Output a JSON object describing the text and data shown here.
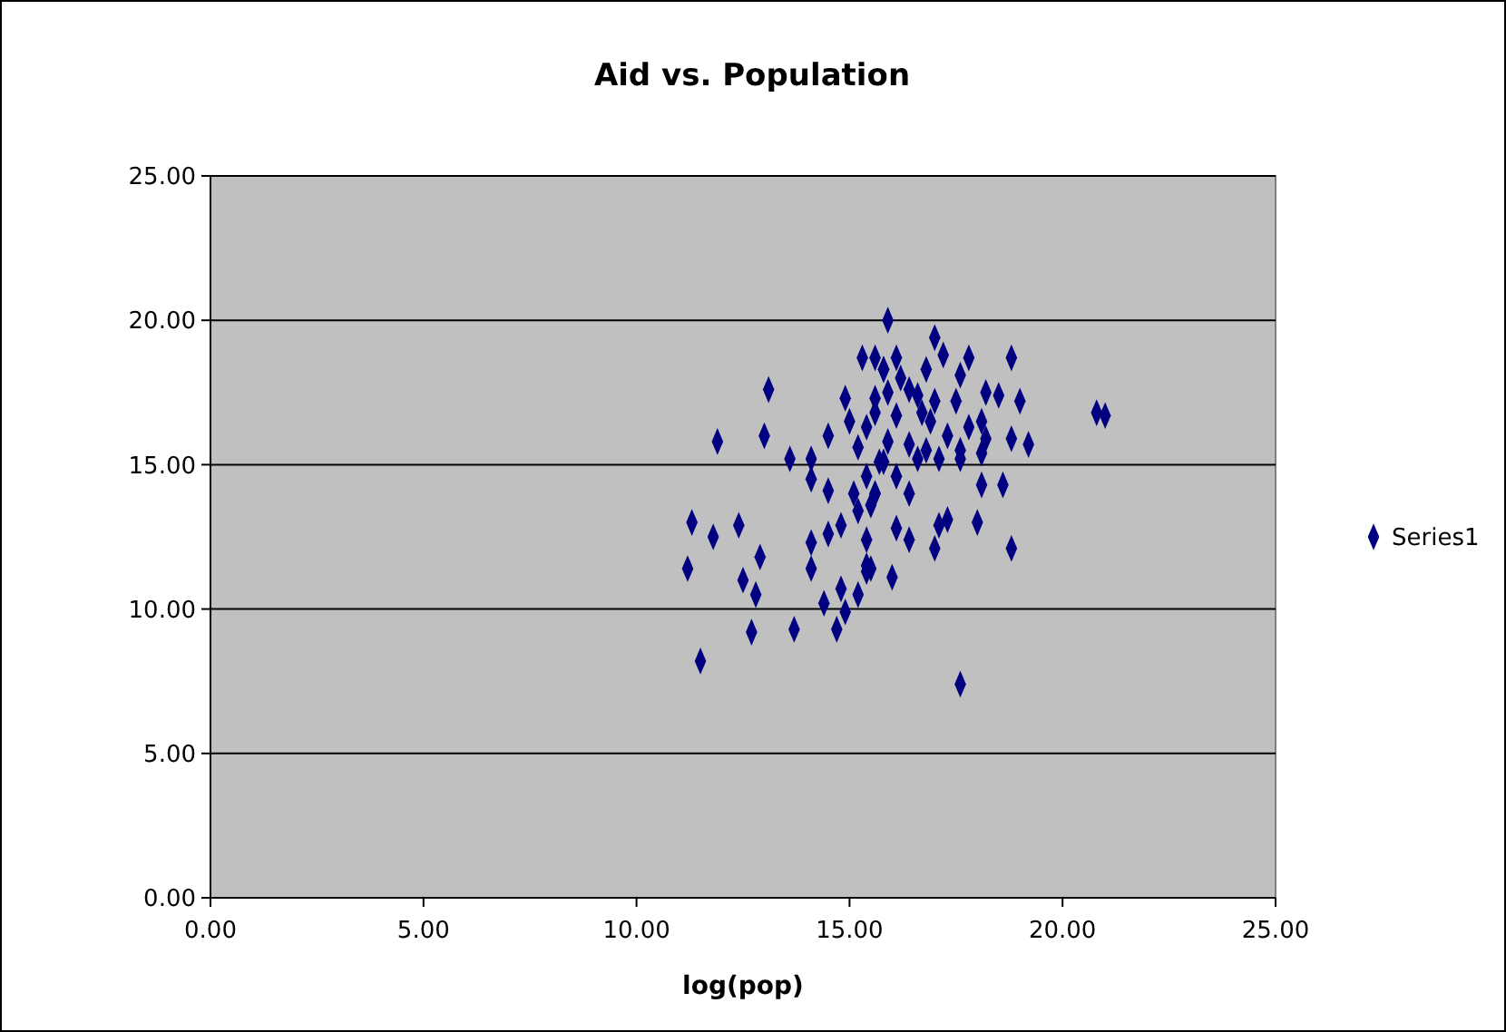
{
  "chart_data": {
    "type": "scatter",
    "title": "Aid vs. Population",
    "xlabel": "log(pop)",
    "xlim": [
      0,
      25
    ],
    "ylim": [
      0,
      25
    ],
    "xticks": [
      {
        "value": 0,
        "label": "0.00"
      },
      {
        "value": 5,
        "label": "5.00"
      },
      {
        "value": 10,
        "label": "10.00"
      },
      {
        "value": 15,
        "label": "15.00"
      },
      {
        "value": 20,
        "label": "20.00"
      },
      {
        "value": 25,
        "label": "25.00"
      }
    ],
    "yticks": [
      {
        "value": 0,
        "label": "0.00"
      },
      {
        "value": 5,
        "label": "5.00"
      },
      {
        "value": 10,
        "label": "10.00"
      },
      {
        "value": 15,
        "label": "15.00"
      },
      {
        "value": 20,
        "label": "20.00"
      },
      {
        "value": 25,
        "label": "25.00"
      }
    ],
    "grid": "y",
    "legend": "right",
    "marker": "diamond",
    "series": [
      {
        "name": "Series1",
        "color": "#000080",
        "x": [
          15.9,
          17.0,
          17.2,
          17.8,
          18.8,
          15.6,
          16.1,
          16.8,
          17.6,
          15.8,
          16.2,
          16.4,
          15.9,
          16.6,
          17.5,
          17.0,
          18.2,
          18.5,
          19.0,
          15.6,
          16.1,
          16.7,
          16.9,
          17.8,
          18.1,
          18.8,
          19.2,
          18.2,
          17.3,
          17.6,
          15.9,
          16.4,
          16.8,
          17.1,
          18.1,
          17.6,
          15.8,
          16.6,
          16.1,
          15.6,
          16.4,
          18.1,
          18.6,
          15.5,
          16.1,
          16.4,
          17.1,
          17.3,
          18.0,
          17.0,
          18.8,
          15.5,
          16.0,
          17.6,
          20.8,
          21.0,
          15.3,
          15.8,
          13.1,
          14.9,
          15.6,
          15.0,
          15.4,
          11.9,
          13.0,
          14.5,
          15.2,
          13.6,
          14.1,
          15.7,
          14.1,
          14.5,
          15.4,
          15.1,
          15.6,
          15.2,
          14.8,
          14.5,
          15.4,
          14.1,
          11.3,
          11.8,
          12.4,
          12.9,
          11.2,
          12.5,
          12.8,
          14.1,
          15.4,
          15.4,
          14.4,
          14.8,
          15.2,
          14.9,
          12.7,
          13.7,
          14.7,
          11.5
        ],
        "values": [
          20.0,
          19.4,
          18.8,
          18.7,
          18.7,
          18.7,
          18.7,
          18.3,
          18.1,
          18.3,
          18.0,
          17.6,
          17.5,
          17.4,
          17.2,
          17.2,
          17.5,
          17.4,
          17.2,
          16.8,
          16.7,
          16.8,
          16.5,
          16.3,
          16.5,
          15.9,
          15.7,
          15.9,
          16.0,
          15.5,
          15.8,
          15.7,
          15.5,
          15.2,
          15.4,
          15.2,
          15.1,
          15.2,
          14.6,
          14.0,
          14.0,
          14.3,
          14.3,
          13.6,
          12.8,
          12.4,
          12.9,
          13.1,
          13.0,
          12.1,
          12.1,
          11.4,
          11.1,
          7.4,
          16.8,
          16.7,
          18.7,
          18.3,
          17.6,
          17.3,
          17.3,
          16.5,
          16.3,
          15.8,
          16.0,
          16.0,
          15.6,
          15.2,
          15.2,
          15.1,
          14.5,
          14.1,
          14.6,
          14.0,
          14.0,
          13.4,
          12.9,
          12.6,
          12.4,
          12.3,
          13.0,
          12.5,
          12.9,
          11.8,
          11.4,
          11.0,
          10.5,
          11.4,
          11.5,
          11.3,
          10.2,
          10.7,
          10.5,
          9.9,
          9.2,
          9.3,
          9.3,
          8.2
        ]
      }
    ]
  }
}
